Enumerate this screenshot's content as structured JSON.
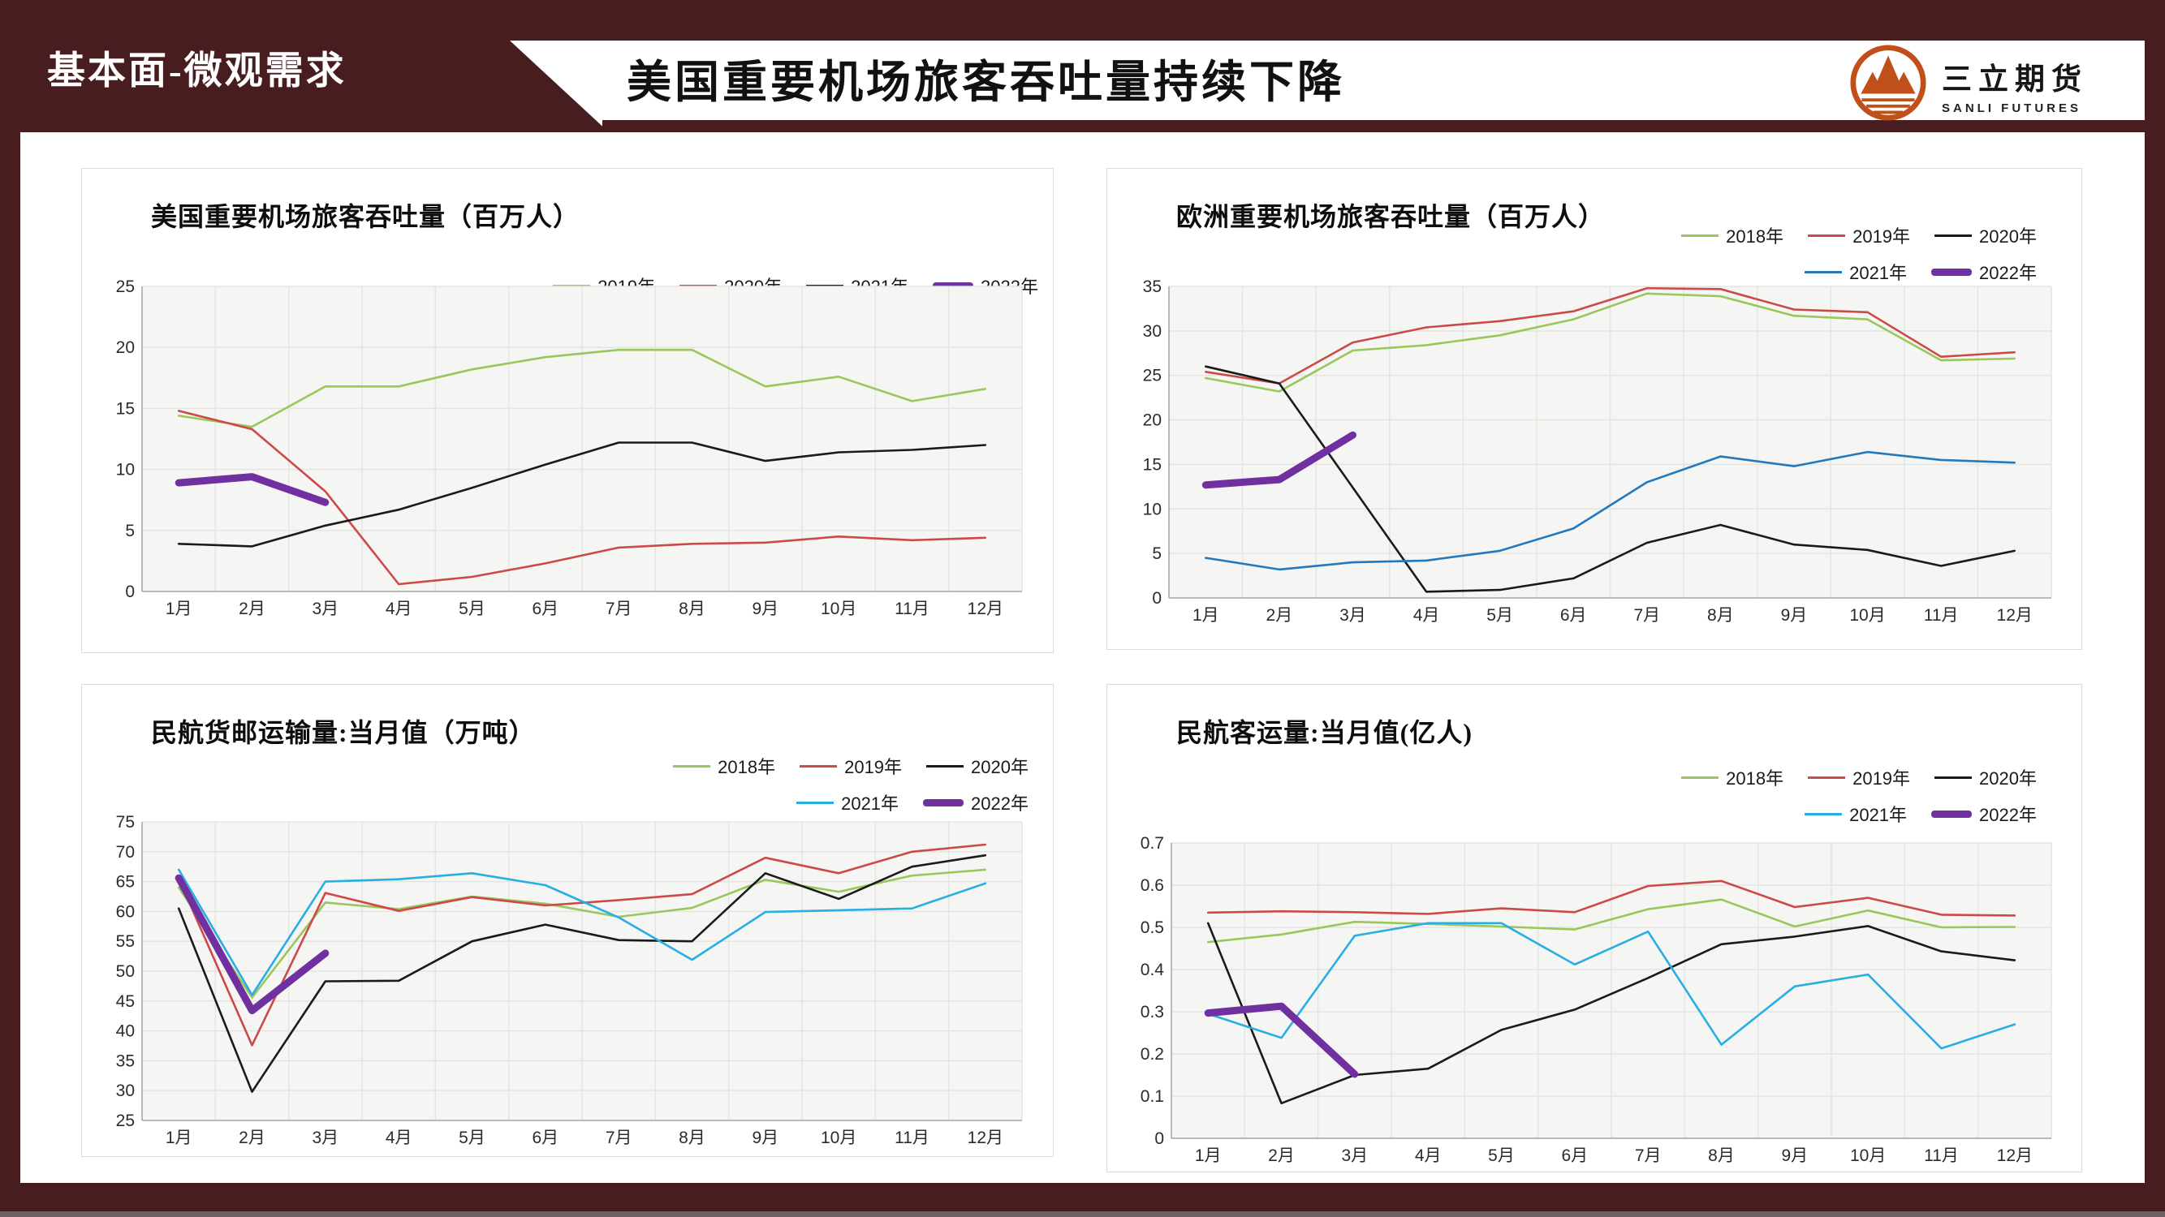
{
  "page": {
    "tab_label": "基本面-微观需求",
    "main_title": "美国重要机场旅客吞吐量持续下降",
    "logo": {
      "name": "三立期货",
      "subtitle": "SANLI FUTURES"
    }
  },
  "colors": {
    "maroon": "#481D1F",
    "footer_edge": "#6E5F60",
    "logo_orange": "#C05019",
    "green": "#99C75B",
    "red": "#CB4A47",
    "black": "#1A1A1A",
    "blue": "#2279BE",
    "cyan": "#27AEE3",
    "purple": "#7030A0",
    "plot_bg": "#F5F5F3",
    "grid": "#E4E4E2",
    "axis": "#A8A8A8"
  },
  "chart_data": [
    {
      "type": "line",
      "title": "美国重要机场旅客吞吐量（百万人）",
      "categories": [
        "1月",
        "2月",
        "3月",
        "4月",
        "5月",
        "6月",
        "7月",
        "8月",
        "9月",
        "10月",
        "11月",
        "12月"
      ],
      "ylim": [
        0,
        25
      ],
      "ytick_step": 5,
      "y_decimals": 0,
      "grid": true,
      "legend_position": "top-right",
      "legend_rows": [
        [
          0,
          1,
          2,
          3
        ]
      ],
      "series": [
        {
          "name": "2019年",
          "color": "green",
          "values": [
            14.4,
            13.5,
            16.8,
            16.8,
            18.2,
            19.2,
            19.8,
            19.8,
            16.8,
            17.6,
            15.6,
            16.6
          ]
        },
        {
          "name": "2020年",
          "color": "red",
          "values": [
            14.8,
            13.3,
            8.2,
            0.6,
            1.2,
            2.3,
            3.6,
            3.9,
            4.0,
            4.5,
            4.2,
            4.4
          ]
        },
        {
          "name": "2021年",
          "color": "black",
          "values": [
            3.9,
            3.7,
            5.4,
            6.7,
            8.5,
            10.4,
            12.2,
            12.2,
            10.7,
            11.4,
            11.6,
            12.0
          ]
        },
        {
          "name": "2022年",
          "color": "purple",
          "thick": true,
          "values": [
            8.9,
            9.4,
            7.3
          ]
        }
      ]
    },
    {
      "type": "line",
      "title": "欧洲重要机场旅客吞吐量（百万人）",
      "categories": [
        "1月",
        "2月",
        "3月",
        "4月",
        "5月",
        "6月",
        "7月",
        "8月",
        "9月",
        "10月",
        "11月",
        "12月"
      ],
      "ylim": [
        0,
        35
      ],
      "ytick_step": 5,
      "y_decimals": 0,
      "grid": true,
      "legend_position": "top-right",
      "legend_rows": [
        [
          0,
          1,
          2
        ],
        [
          3,
          4
        ]
      ],
      "series": [
        {
          "name": "2018年",
          "color": "green",
          "values": [
            24.7,
            23.2,
            27.8,
            28.4,
            29.5,
            31.3,
            34.2,
            33.9,
            31.7,
            31.3,
            26.7,
            26.9
          ]
        },
        {
          "name": "2019年",
          "color": "red",
          "values": [
            25.4,
            24.1,
            28.7,
            30.4,
            31.1,
            32.2,
            34.8,
            34.7,
            32.4,
            32.1,
            27.1,
            27.6
          ]
        },
        {
          "name": "2020年",
          "color": "black",
          "values": [
            26.0,
            24.1,
            12.4,
            0.7,
            0.9,
            2.2,
            6.2,
            8.2,
            6.0,
            5.4,
            3.6,
            5.3
          ]
        },
        {
          "name": "2021年",
          "color": "blue",
          "values": [
            4.5,
            3.2,
            4.0,
            4.2,
            5.3,
            7.8,
            13.0,
            15.9,
            14.8,
            16.4,
            15.5,
            15.2
          ]
        },
        {
          "name": "2022年",
          "color": "purple",
          "thick": true,
          "values": [
            12.7,
            13.3,
            18.3
          ]
        }
      ]
    },
    {
      "type": "line",
      "title": "民航货邮运输量:当月值（万吨）",
      "categories": [
        "1月",
        "2月",
        "3月",
        "4月",
        "5月",
        "6月",
        "7月",
        "8月",
        "9月",
        "10月",
        "11月",
        "12月"
      ],
      "ylim": [
        25,
        75
      ],
      "ytick_step": 5,
      "y_decimals": 0,
      "grid": true,
      "legend_position": "top-right",
      "legend_rows": [
        [
          0,
          1,
          2
        ],
        [
          3,
          4
        ]
      ],
      "series": [
        {
          "name": "2018年",
          "color": "green",
          "values": [
            64.0,
            45.6,
            61.5,
            60.4,
            62.5,
            61.3,
            59.1,
            60.6,
            65.3,
            63.3,
            66.0,
            67.0
          ]
        },
        {
          "name": "2019年",
          "color": "red",
          "values": [
            65.5,
            37.6,
            63.1,
            60.1,
            62.4,
            61.0,
            61.9,
            62.9,
            69.0,
            66.4,
            70.0,
            71.2
          ]
        },
        {
          "name": "2020年",
          "color": "black",
          "values": [
            60.5,
            29.8,
            48.3,
            48.4,
            55.0,
            57.8,
            55.2,
            55.0,
            66.4,
            62.1,
            67.5,
            69.4
          ]
        },
        {
          "name": "2021年",
          "color": "cyan",
          "values": [
            67.0,
            46.0,
            65.0,
            65.4,
            66.4,
            64.4,
            59.0,
            51.9,
            59.9,
            60.2,
            60.5,
            64.7
          ]
        },
        {
          "name": "2022年",
          "color": "purple",
          "thick": true,
          "values": [
            65.6,
            43.4,
            53.0
          ]
        }
      ]
    },
    {
      "type": "line",
      "title": "民航客运量:当月值(亿人)",
      "categories": [
        "1月",
        "2月",
        "3月",
        "4月",
        "5月",
        "6月",
        "7月",
        "8月",
        "9月",
        "10月",
        "11月",
        "12月"
      ],
      "ylim": [
        0,
        0.7
      ],
      "ytick_step": 0.1,
      "y_decimals": 1,
      "grid": true,
      "legend_position": "top-right",
      "legend_rows": [
        [
          0,
          1,
          2
        ],
        [
          3,
          4
        ]
      ],
      "series": [
        {
          "name": "2018年",
          "color": "green",
          "values": [
            0.465,
            0.483,
            0.513,
            0.508,
            0.502,
            0.495,
            0.543,
            0.566,
            0.502,
            0.54,
            0.5,
            0.501
          ]
        },
        {
          "name": "2019年",
          "color": "red",
          "values": [
            0.535,
            0.538,
            0.536,
            0.532,
            0.545,
            0.536,
            0.598,
            0.61,
            0.548,
            0.57,
            0.53,
            0.528
          ]
        },
        {
          "name": "2020年",
          "color": "black",
          "values": [
            0.51,
            0.083,
            0.15,
            0.165,
            0.257,
            0.305,
            0.38,
            0.46,
            0.478,
            0.503,
            0.443,
            0.422
          ]
        },
        {
          "name": "2021年",
          "color": "cyan",
          "values": [
            0.295,
            0.238,
            0.48,
            0.51,
            0.51,
            0.412,
            0.49,
            0.222,
            0.36,
            0.388,
            0.213,
            0.27
          ]
        },
        {
          "name": "2022年",
          "color": "purple",
          "thick": true,
          "values": [
            0.297,
            0.313,
            0.152
          ]
        }
      ]
    }
  ]
}
